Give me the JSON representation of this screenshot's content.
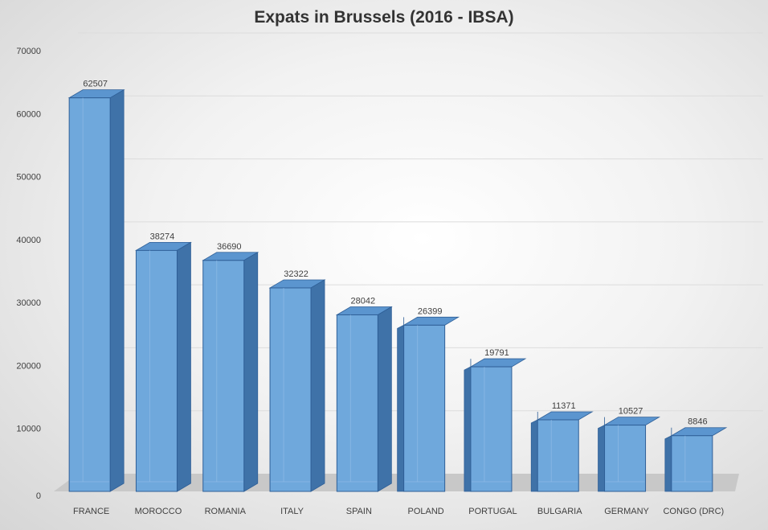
{
  "chart_data": {
    "type": "bar",
    "title": "Expats in Brussels (2016 - IBSA)",
    "categories": [
      "FRANCE",
      "MOROCCO",
      "ROMANIA",
      "ITALY",
      "SPAIN",
      "POLAND",
      "PORTUGAL",
      "BULGARIA",
      "GERMANY",
      "CONGO (DRC)"
    ],
    "values": [
      62507,
      38274,
      36690,
      32322,
      28042,
      26399,
      19791,
      11371,
      10527,
      8846
    ],
    "ylim": [
      0,
      70000
    ],
    "yticks": [
      "0",
      "10000",
      "20000",
      "30000",
      "40000",
      "50000",
      "60000",
      "70000"
    ],
    "grid": true,
    "legend": "none",
    "style": "3d-column",
    "colors": {
      "bar_front": "#6fa8dc",
      "bar_top": "#5b95cf",
      "bar_side": "#3f72a8",
      "bar_border": "#2f5f97",
      "floor": "#c8c8c8"
    }
  }
}
